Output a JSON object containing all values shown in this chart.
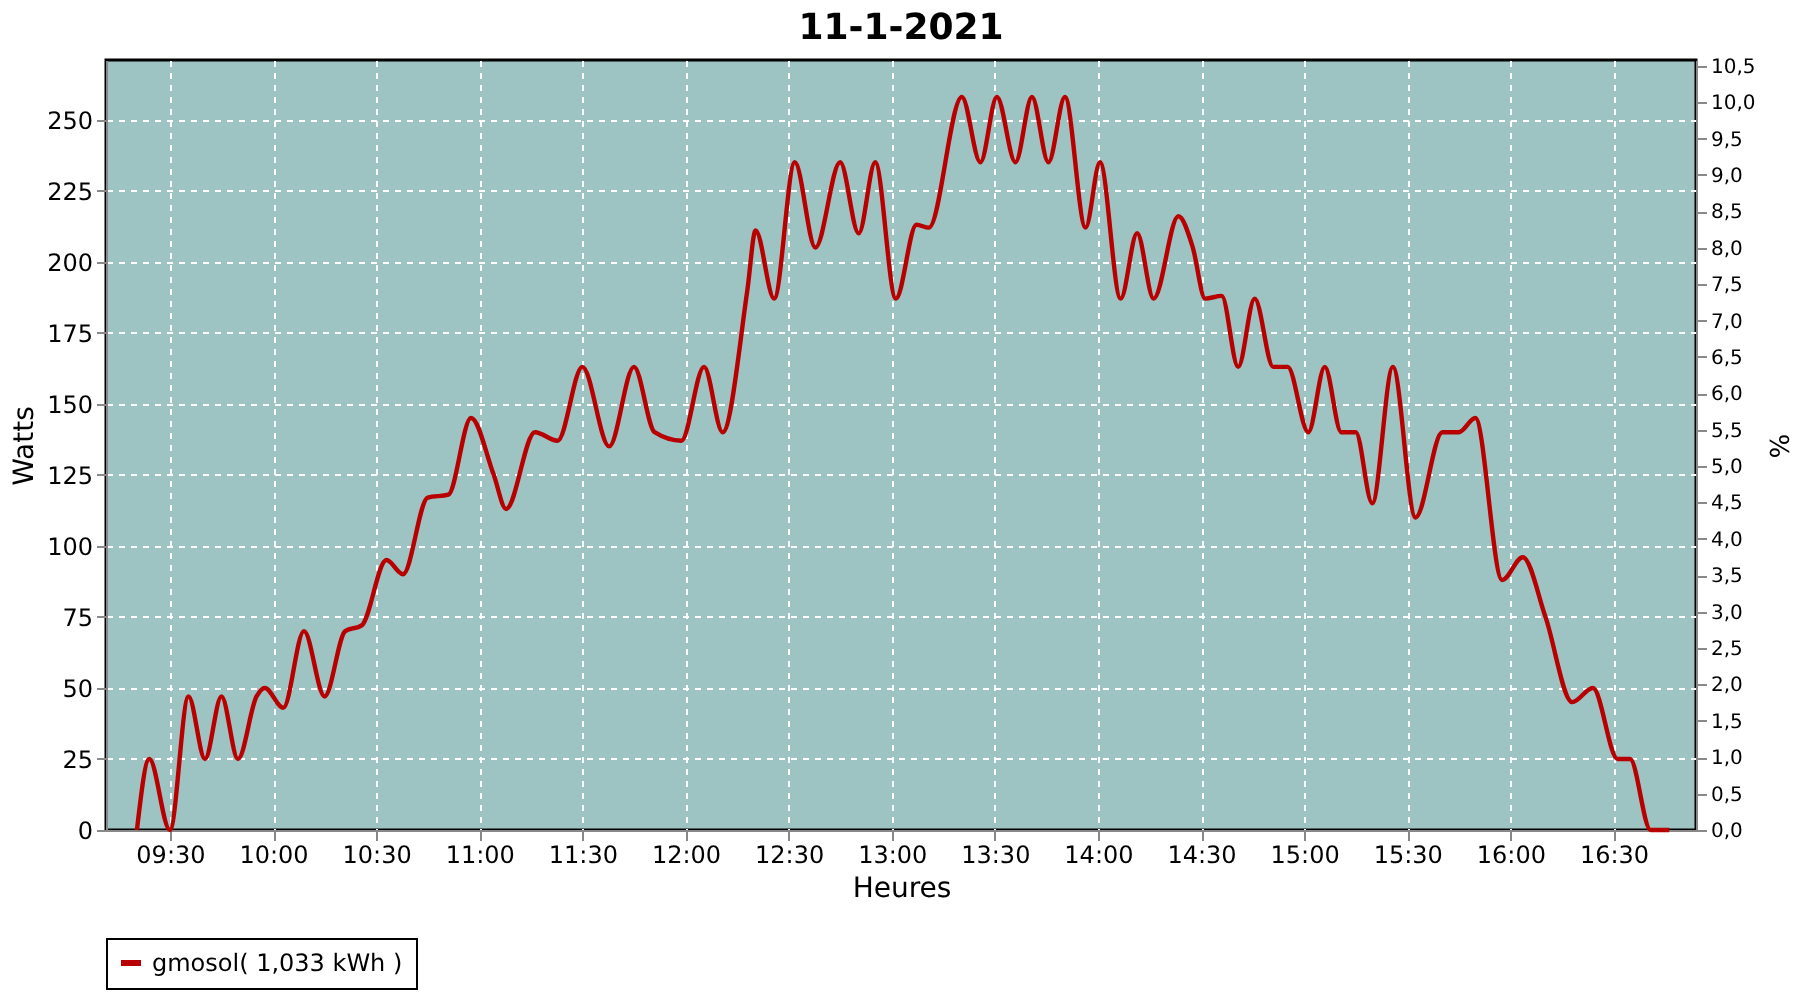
{
  "chart_data": {
    "type": "line",
    "title": "11-1-2021",
    "xlabel": "Heures",
    "ylabel": "Watts",
    "y2label": "%",
    "xlim": [
      9.19,
      16.9
    ],
    "xticks": [
      {
        "value": 9.5,
        "label": "09:30"
      },
      {
        "value": 10,
        "label": "10:00"
      },
      {
        "value": 10.5,
        "label": "10:30"
      },
      {
        "value": 11,
        "label": "11:00"
      },
      {
        "value": 11.5,
        "label": "11:30"
      },
      {
        "value": 12,
        "label": "12:00"
      },
      {
        "value": 12.5,
        "label": "12:30"
      },
      {
        "value": 13,
        "label": "13:00"
      },
      {
        "value": 13.5,
        "label": "13:30"
      },
      {
        "value": 14,
        "label": "14:00"
      },
      {
        "value": 14.5,
        "label": "14:30"
      },
      {
        "value": 15,
        "label": "15:00"
      },
      {
        "value": 15.5,
        "label": "15:30"
      },
      {
        "value": 16,
        "label": "16:00"
      },
      {
        "value": 16.5,
        "label": "16:30"
      }
    ],
    "ylim": [
      0,
      271
    ],
    "yticks": [
      0,
      25,
      50,
      75,
      100,
      125,
      150,
      175,
      200,
      225,
      250
    ],
    "y2lim": [
      0,
      10.58
    ],
    "y2ticks": [
      {
        "value": 0,
        "label": "0,0"
      },
      {
        "value": 0.5,
        "label": "0,5"
      },
      {
        "value": 1,
        "label": "1,0"
      },
      {
        "value": 1.5,
        "label": "1,5"
      },
      {
        "value": 2,
        "label": "2,0"
      },
      {
        "value": 2.5,
        "label": "2,5"
      },
      {
        "value": 3,
        "label": "3,0"
      },
      {
        "value": 3.5,
        "label": "3,5"
      },
      {
        "value": 4,
        "label": "4,0"
      },
      {
        "value": 4.5,
        "label": "4,5"
      },
      {
        "value": 5,
        "label": "5,0"
      },
      {
        "value": 5.5,
        "label": "5,5"
      },
      {
        "value": 6,
        "label": "6,0"
      },
      {
        "value": 6.5,
        "label": "6,5"
      },
      {
        "value": 7,
        "label": "7,0"
      },
      {
        "value": 7.5,
        "label": "7,5"
      },
      {
        "value": 8,
        "label": "8,0"
      },
      {
        "value": 8.5,
        "label": "8,5"
      },
      {
        "value": 9,
        "label": "9,0"
      },
      {
        "value": 9.5,
        "label": "9,5"
      },
      {
        "value": 10,
        "label": "10,0"
      },
      {
        "value": 10.5,
        "label": "10,5"
      }
    ],
    "grid": true,
    "legend": "bottom",
    "marker": "none",
    "line_style": "solid",
    "series": [
      {
        "name": "gmosol( 1,033 kWh )",
        "color": "#b80000",
        "x": [
          9.34,
          9.4,
          9.5,
          9.59,
          9.67,
          9.75,
          9.83,
          9.92,
          9.96,
          10.05,
          10.15,
          10.25,
          10.35,
          10.43,
          10.55,
          10.63,
          10.75,
          10.85,
          10.96,
          11.07,
          11.13,
          11.27,
          11.38,
          11.5,
          11.63,
          11.75,
          11.85,
          11.98,
          12.09,
          12.18,
          12.3,
          12.34,
          12.43,
          12.53,
          12.63,
          12.75,
          12.84,
          12.92,
          13.02,
          13.12,
          13.18,
          13.34,
          13.43,
          13.51,
          13.6,
          13.68,
          13.76,
          13.84,
          13.94,
          14.01,
          14.11,
          14.19,
          14.27,
          14.39,
          14.46,
          14.52,
          14.6,
          14.68,
          14.76,
          14.85,
          14.92,
          15.02,
          15.1,
          15.18,
          15.25,
          15.33,
          15.43,
          15.54,
          15.67,
          15.75,
          15.83,
          15.96,
          16.06,
          16.17,
          16.3,
          16.4,
          16.52,
          16.58,
          16.68,
          16.77
        ],
        "values": [
          0,
          25,
          0,
          47,
          25,
          47,
          25,
          47,
          50,
          43,
          70,
          47,
          70,
          72,
          95,
          90,
          117,
          118,
          145,
          125,
          113,
          140,
          137,
          163,
          135,
          163,
          140,
          137,
          163,
          140,
          190,
          211,
          187,
          235,
          205,
          235,
          210,
          235,
          187,
          213,
          212,
          258,
          235,
          258,
          235,
          258,
          235,
          258,
          212,
          235,
          187,
          210,
          187,
          216,
          205,
          187,
          188,
          163,
          187,
          163,
          163,
          140,
          163,
          140,
          140,
          115,
          163,
          110,
          140,
          140,
          145,
          88,
          96,
          75,
          45,
          50,
          25,
          25,
          0,
          0
        ]
      }
    ]
  }
}
